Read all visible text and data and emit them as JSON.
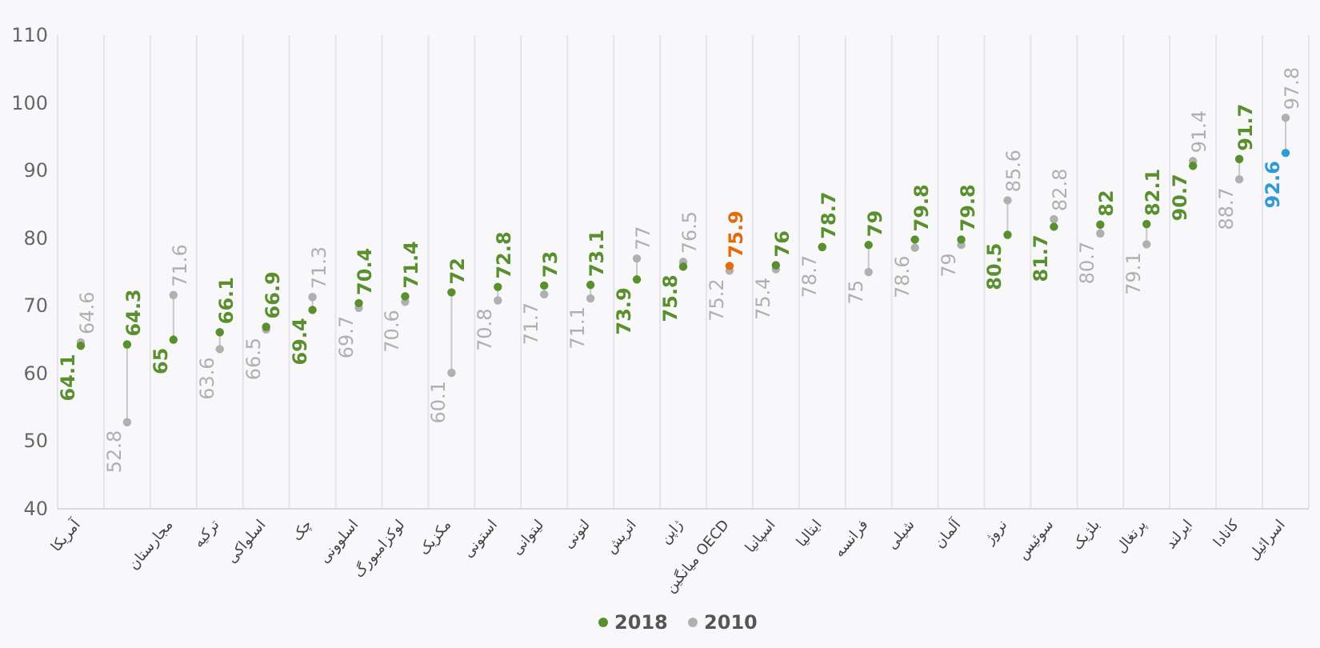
{
  "chart_data": {
    "type": "scatter",
    "categories": [
      "آمریکا",
      null,
      "مجارستان",
      "ترکیه",
      "اسلواکی",
      "چک",
      "اسلوونی",
      "لوکزامبورگ",
      "مکزیک",
      "استونی",
      "لیتوانی",
      "لتونی",
      "اتریش",
      "ژاپن",
      "میانگین OECD",
      "اسپانیا",
      "ایتالیا",
      "فرانسه",
      "شیلی",
      "آلمان",
      "نروژ",
      "سوئیس",
      "بلژیک",
      "پرتغال",
      "ایرلند",
      "کانادا",
      "اسرائیل"
    ],
    "series": [
      {
        "name": "2018",
        "color": "#5a8f2e",
        "colors": [
          "#5a8f2e",
          "#5a8f2e",
          "#5a8f2e",
          "#5a8f2e",
          "#5a8f2e",
          "#5a8f2e",
          "#5a8f2e",
          "#5a8f2e",
          "#5a8f2e",
          "#5a8f2e",
          "#5a8f2e",
          "#5a8f2e",
          "#5a8f2e",
          "#5a8f2e",
          "#e36c0a",
          "#5a8f2e",
          "#5a8f2e",
          "#5a8f2e",
          "#5a8f2e",
          "#5a8f2e",
          "#5a8f2e",
          "#5a8f2e",
          "#5a8f2e",
          "#5a8f2e",
          "#5a8f2e",
          "#5a8f2e",
          "#2e9bd6"
        ],
        "values": [
          64.1,
          64.3,
          65,
          66.1,
          66.9,
          69.4,
          70.4,
          71.4,
          72,
          72.8,
          73,
          73.1,
          73.9,
          75.8,
          75.9,
          76,
          78.7,
          79,
          79.8,
          79.8,
          80.5,
          81.7,
          82,
          82.1,
          90.7,
          91.7,
          92.6
        ]
      },
      {
        "name": "2010",
        "color": "#b0b0b0",
        "values": [
          64.6,
          52.8,
          71.6,
          63.6,
          66.5,
          71.3,
          69.7,
          70.6,
          60.1,
          70.8,
          71.7,
          71.1,
          77,
          76.5,
          75.2,
          75.4,
          78.7,
          75,
          78.6,
          79,
          85.6,
          82.8,
          80.7,
          79.1,
          91.4,
          88.7,
          97.8
        ]
      }
    ],
    "ylim": [
      40,
      110
    ],
    "yticks": [
      40,
      50,
      60,
      70,
      80,
      90,
      100,
      110
    ],
    "grid": "x",
    "legend": "bottom",
    "marker": "circle",
    "data_labels": true
  }
}
